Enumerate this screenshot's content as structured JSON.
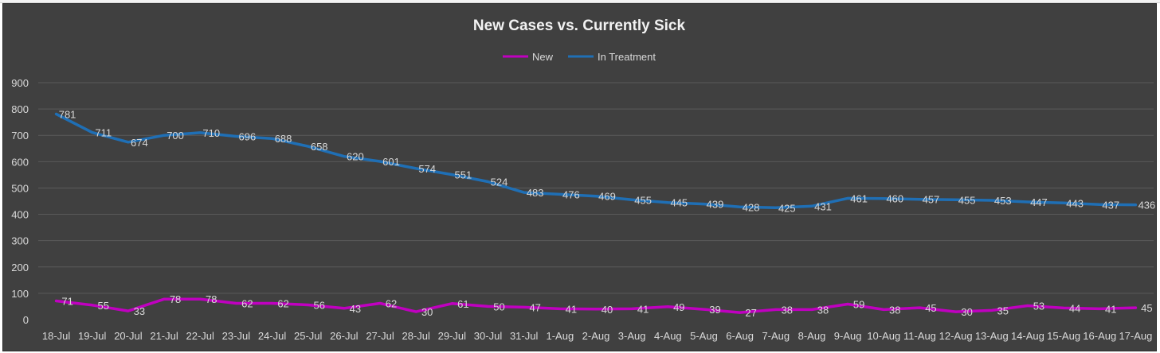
{
  "chart_data": {
    "type": "line",
    "title": "New Cases vs. Currently Sick",
    "xlabel": "",
    "ylabel": "",
    "ylim": [
      0,
      900
    ],
    "yticks": [
      0,
      100,
      200,
      300,
      400,
      500,
      600,
      700,
      800,
      900
    ],
    "grid": true,
    "legend_position": "top-center",
    "categories": [
      "18-Jul",
      "19-Jul",
      "20-Jul",
      "21-Jul",
      "22-Jul",
      "23-Jul",
      "24-Jul",
      "25-Jul",
      "26-Jul",
      "27-Jul",
      "28-Jul",
      "29-Jul",
      "30-Jul",
      "31-Jul",
      "1-Aug",
      "2-Aug",
      "3-Aug",
      "4-Aug",
      "5-Aug",
      "6-Aug",
      "7-Aug",
      "8-Aug",
      "9-Aug",
      "10-Aug",
      "11-Aug",
      "12-Aug",
      "13-Aug",
      "14-Aug",
      "15-Aug",
      "16-Aug",
      "17-Aug"
    ],
    "series": [
      {
        "name": "New",
        "color": "#c000c0",
        "values": [
          71,
          55,
          33,
          78,
          78,
          62,
          62,
          56,
          43,
          62,
          30,
          61,
          50,
          47,
          41,
          40,
          41,
          49,
          39,
          27,
          38,
          38,
          59,
          38,
          45,
          30,
          35,
          53,
          44,
          41,
          45
        ]
      },
      {
        "name": "In Treatment",
        "color": "#1f6fb5",
        "values": [
          781,
          711,
          674,
          700,
          710,
          696,
          688,
          658,
          620,
          601,
          574,
          551,
          524,
          483,
          476,
          469,
          455,
          445,
          439,
          428,
          425,
          431,
          461,
          460,
          457,
          455,
          453,
          447,
          443,
          437,
          436
        ]
      }
    ]
  },
  "colors": {
    "background": "#404040",
    "gridline": "#5a5a5a",
    "text": "#d9d9d9"
  }
}
